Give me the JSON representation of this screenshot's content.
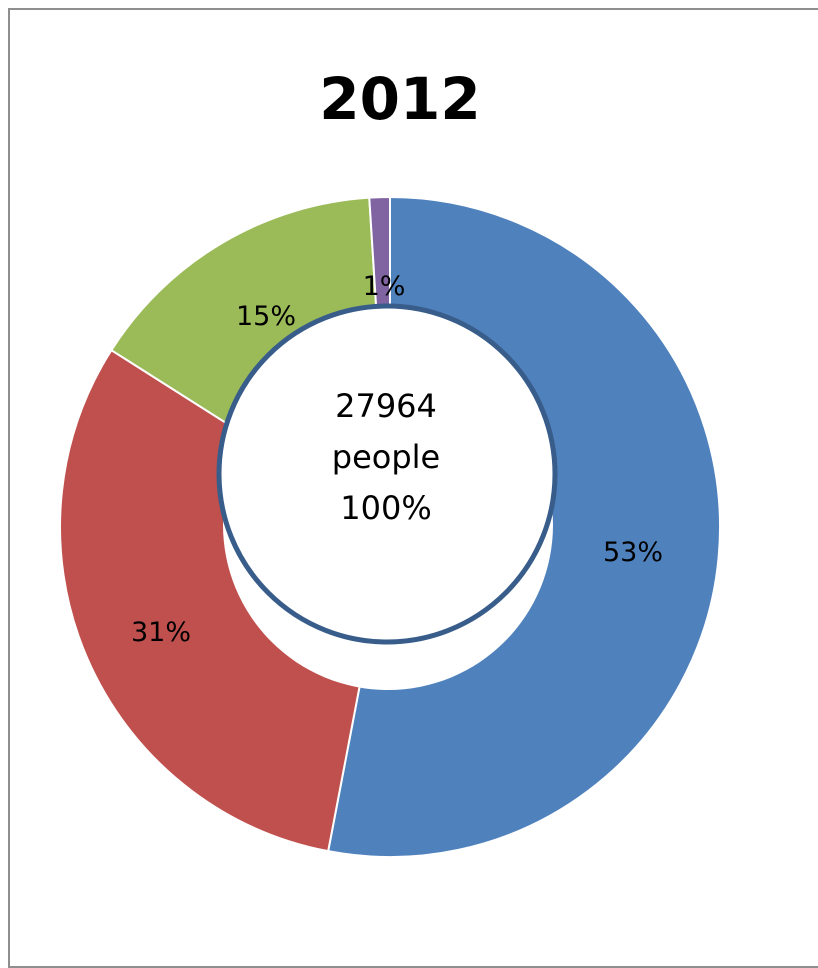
{
  "chart_data": {
    "type": "pie",
    "subtype": "doughnut",
    "title": "2012",
    "slices": [
      {
        "label": "53%",
        "value": 53,
        "color": "#4f81bd"
      },
      {
        "label": "31%",
        "value": 31,
        "color": "#c0504d"
      },
      {
        "label": "15%",
        "value": 15,
        "color": "#9bbb59"
      },
      {
        "label": "1%",
        "value": 1,
        "color": "#8064a2"
      }
    ],
    "center_text": [
      "27964",
      "people",
      "100%"
    ],
    "center_ring_color": "#385d8a"
  }
}
